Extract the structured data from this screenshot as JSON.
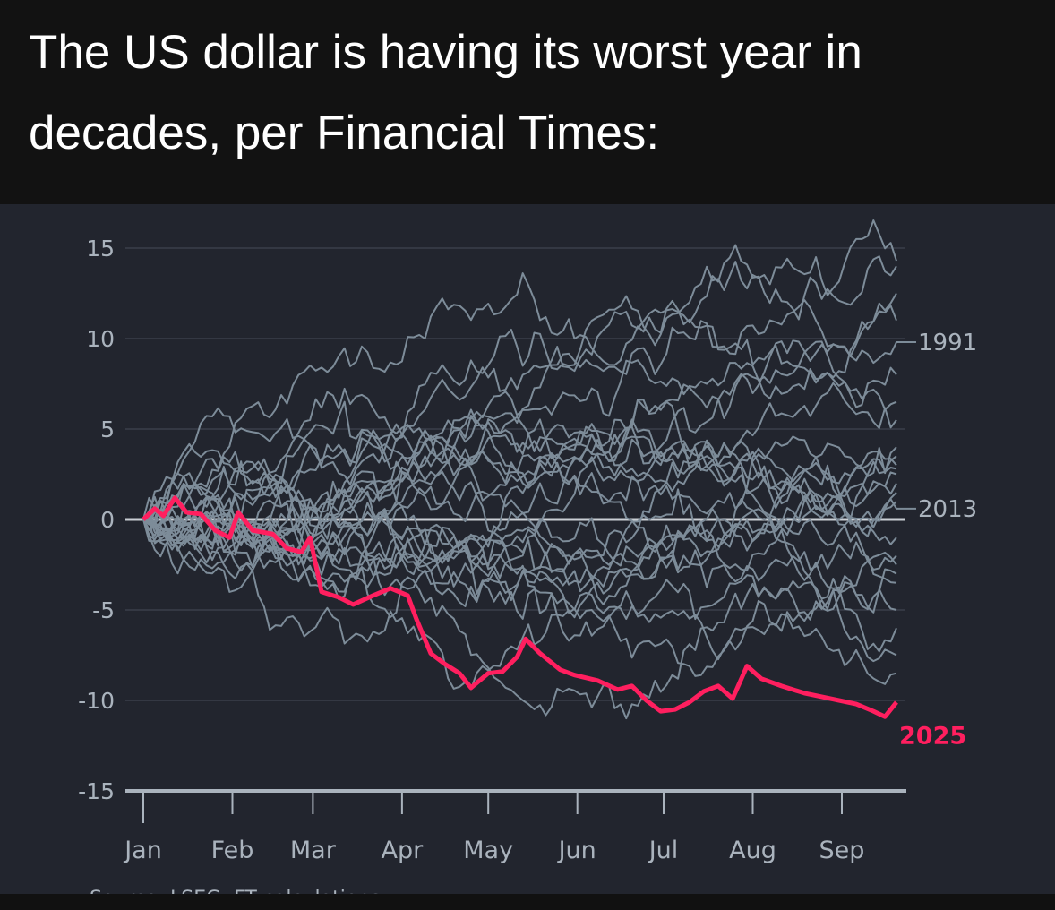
{
  "header": {
    "title": "The US dollar is having its worst year in decades, per Financial Times:"
  },
  "chart_data": {
    "type": "line",
    "title": "The US dollar is having its worst year in decades, per Financial Times:",
    "xlabel": "",
    "ylabel": "",
    "ylim": [
      -15,
      15
    ],
    "yticks": [
      "15",
      "10",
      "5",
      "0",
      "-5",
      "-10",
      "-15"
    ],
    "ytick_values": [
      15,
      10,
      5,
      0,
      -5,
      -10,
      -15
    ],
    "xticks": [
      "Jan",
      "Feb",
      "Mar",
      "Apr",
      "May",
      "Jun",
      "Jul",
      "Aug",
      "Sep"
    ],
    "xtick_days": [
      0,
      31,
      59,
      90,
      120,
      151,
      181,
      212,
      243
    ],
    "x_units": "day of year",
    "xlim": [
      0,
      262
    ],
    "colors": {
      "highlight": "#ff1f5f",
      "other": "#7d8c99",
      "labels": "#aab3bd",
      "background": "#22252e"
    },
    "highlight_series": {
      "name": "2025",
      "points": [
        [
          0,
          0
        ],
        [
          4,
          0.6
        ],
        [
          7,
          0.2
        ],
        [
          11,
          1.2
        ],
        [
          15,
          0.4
        ],
        [
          20,
          0.3
        ],
        [
          25,
          -0.6
        ],
        [
          30,
          -1
        ],
        [
          33,
          0.4
        ],
        [
          38,
          -0.6
        ],
        [
          45,
          -0.8
        ],
        [
          50,
          -1.6
        ],
        [
          55,
          -1.8
        ],
        [
          58,
          -1
        ],
        [
          62,
          -4
        ],
        [
          68,
          -4.3
        ],
        [
          73,
          -4.7
        ],
        [
          80,
          -4.2
        ],
        [
          86,
          -3.8
        ],
        [
          92,
          -4.2
        ],
        [
          95,
          -5.5
        ],
        [
          100,
          -7.4
        ],
        [
          105,
          -8
        ],
        [
          110,
          -8.5
        ],
        [
          114,
          -9.3
        ],
        [
          120,
          -8.5
        ],
        [
          125,
          -8.4
        ],
        [
          130,
          -7.6
        ],
        [
          133,
          -6.6
        ],
        [
          138,
          -7.4
        ],
        [
          145,
          -8.3
        ],
        [
          150,
          -8.6
        ],
        [
          158,
          -8.9
        ],
        [
          165,
          -9.4
        ],
        [
          170,
          -9.2
        ],
        [
          175,
          -10
        ],
        [
          180,
          -10.6
        ],
        [
          185,
          -10.5
        ],
        [
          190,
          -10.1
        ],
        [
          195,
          -9.5
        ],
        [
          200,
          -9.2
        ],
        [
          205,
          -9.9
        ],
        [
          210,
          -8.1
        ],
        [
          215,
          -8.8
        ],
        [
          222,
          -9.2
        ],
        [
          230,
          -9.6
        ],
        [
          236,
          -9.8
        ],
        [
          242,
          -10
        ],
        [
          248,
          -10.2
        ],
        [
          254,
          -10.6
        ],
        [
          258,
          -10.9
        ],
        [
          262,
          -10.1
        ]
      ]
    },
    "labeled_series": [
      {
        "name": "1991",
        "final_value": 9.8
      },
      {
        "name": "2013",
        "final_value": 0.6
      }
    ],
    "other_years_final_values": [
      14.3,
      14.0,
      12.5,
      11.0,
      8.0,
      6.5,
      5.5,
      4.0,
      3.0,
      2.5,
      2.0,
      1.5,
      1.0,
      -1.0,
      -2.0,
      -3.0,
      -3.5,
      -5.0,
      -6.0,
      -7.5,
      -8.5,
      3.5,
      2.8,
      -2.5
    ]
  },
  "footer": {
    "source": "Source: LSEG, FT calculations"
  }
}
